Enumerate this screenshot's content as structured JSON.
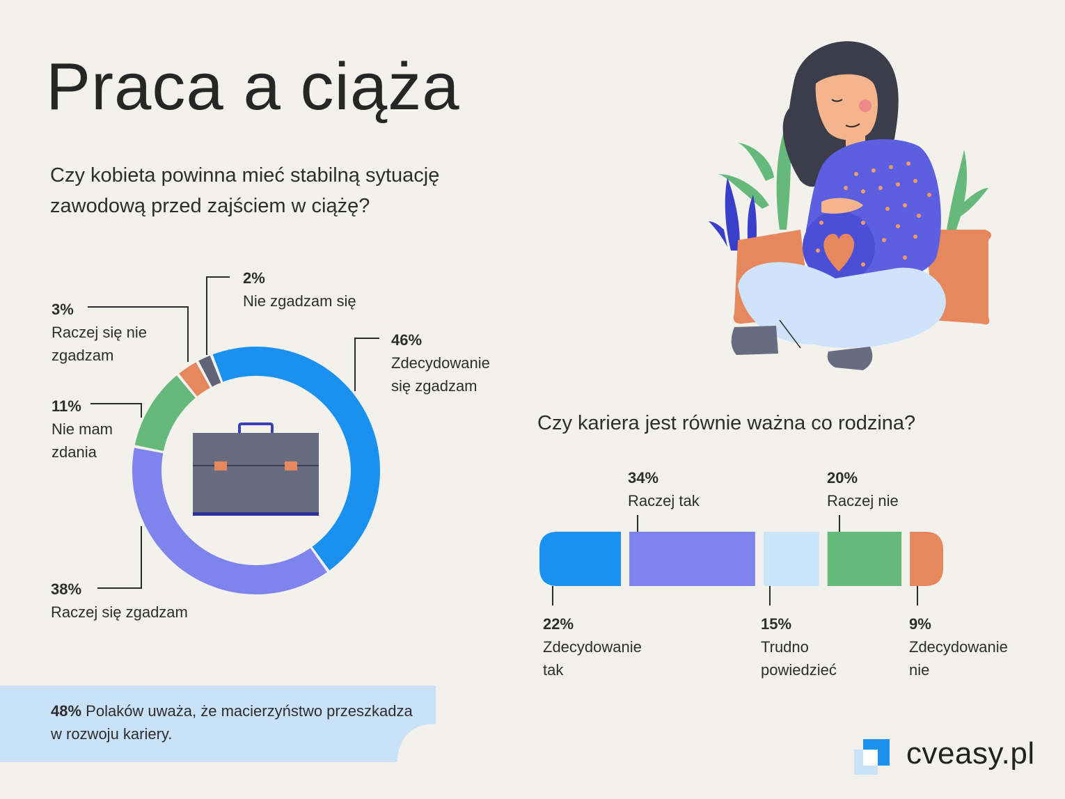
{
  "title": "Praca a ciąża",
  "question1": "Czy kobieta powinna mieć stabilną sytuację zawodową przed zajściem w ciążę?",
  "question2": "Czy kariera jest równie ważna co rodzina?",
  "fact": {
    "pct": "48%",
    "text": " Polaków uważa, że macierzyństwo przeszkadza w rozwoju kariery."
  },
  "brand": "cveasy.pl",
  "colors": {
    "blue": "#1a91ef",
    "purple": "#7f83ec",
    "lightblue": "#cde5f9",
    "green": "#66b97a",
    "orange": "#e7875e",
    "slate": "#5f6479"
  },
  "icons": [
    "briefcase-icon",
    "pregnant-woman-illustration",
    "cveasy-logo-icon"
  ],
  "chart_data": [
    {
      "type": "pie",
      "donut": true,
      "slices": [
        {
          "label": "Zdecydowanie się zgadzam",
          "pct_label": "46%",
          "value": 46,
          "color": "#1a91ef"
        },
        {
          "label": "Raczej się zgadzam",
          "pct_label": "38%",
          "value": 38,
          "color": "#7f83ec"
        },
        {
          "label": "Nie mam zdania",
          "pct_label": "11%",
          "value": 11,
          "color": "#66b97a"
        },
        {
          "label": "Raczej się nie zgadzam",
          "pct_label": "3%",
          "value": 3,
          "color": "#e7875e"
        },
        {
          "label": "Nie zgadzam się",
          "pct_label": "2%",
          "value": 2,
          "color": "#5f6479"
        }
      ]
    },
    {
      "type": "bar",
      "stacked": true,
      "orientation": "horizontal",
      "segments": [
        {
          "label": "Zdecydowanie tak",
          "pct_label": "22%",
          "value": 22,
          "color": "#1a91ef"
        },
        {
          "label": "Raczej tak",
          "pct_label": "34%",
          "value": 34,
          "color": "#7f83ec"
        },
        {
          "label": "Trudno powiedzieć",
          "pct_label": "15%",
          "value": 15,
          "color": "#cde5f9"
        },
        {
          "label": "Raczej nie",
          "pct_label": "20%",
          "value": 20,
          "color": "#66b97a"
        },
        {
          "label": "Zdecydowanie nie",
          "pct_label": "9%",
          "value": 9,
          "color": "#e7875e"
        }
      ]
    }
  ]
}
